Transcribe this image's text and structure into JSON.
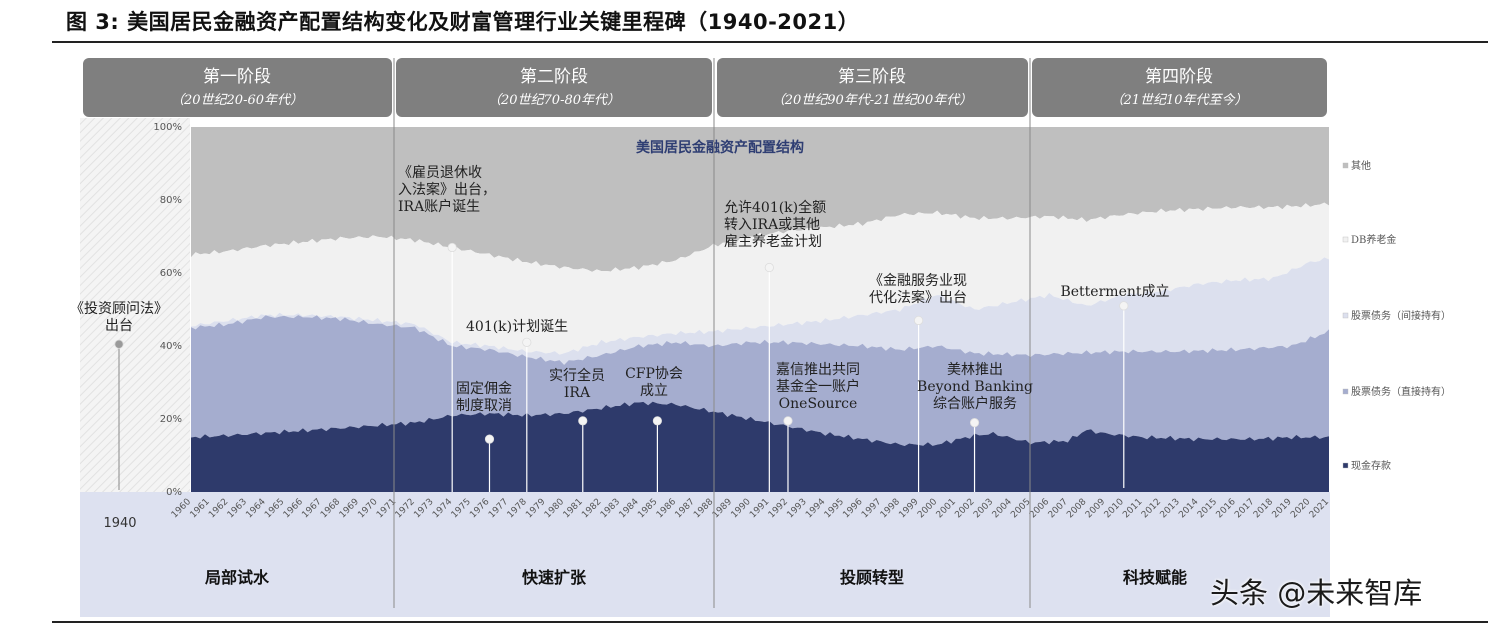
{
  "figure": {
    "title": "图 3: 美国居民金融资产配置结构变化及财富管理行业关键里程碑（1940-2021）",
    "watermark": "头条 @未来智库"
  },
  "stages": [
    {
      "title": "第一阶段",
      "subtitle": "（20世纪20-60年代）"
    },
    {
      "title": "第二阶段",
      "subtitle": "（20世纪70-80年代）"
    },
    {
      "title": "第三阶段",
      "subtitle": "（20世纪90年代-21世纪00年代）"
    },
    {
      "title": "第四阶段",
      "subtitle": "（21世纪10年代至今）"
    }
  ],
  "phases": [
    "局部试水",
    "快速扩张",
    "投顾转型",
    "科技赋能"
  ],
  "colors": {
    "stage_header": "#7f7f7f",
    "lower_band": "#dde1f0",
    "cash": "#2e3a6b",
    "direct": "#a5adcf",
    "indirect": "#dce0ee",
    "db": "#f1f1f1",
    "other": "#bfbfbf",
    "chart_title": "#2f3e73"
  },
  "chart_data": {
    "type": "area",
    "stacked": true,
    "title": "美国居民金融资产配置结构",
    "x_start": 1960,
    "x_end": 2021,
    "x_ticks": [
      1960,
      1961,
      1962,
      1963,
      1964,
      1965,
      1966,
      1967,
      1968,
      1969,
      1970,
      1971,
      1972,
      1973,
      1974,
      1975,
      1976,
      1977,
      1978,
      1979,
      1980,
      1981,
      1982,
      1983,
      1984,
      1985,
      1986,
      1987,
      1988,
      1989,
      1990,
      1991,
      1992,
      1993,
      1994,
      1995,
      1996,
      1997,
      1998,
      1999,
      2000,
      2001,
      2002,
      2003,
      2004,
      2005,
      2006,
      2007,
      2008,
      2009,
      2010,
      2011,
      2012,
      2013,
      2014,
      2015,
      2016,
      2017,
      2018,
      2019,
      2020,
      2021
    ],
    "y_ticks": [
      "0%",
      "20%",
      "40%",
      "60%",
      "80%",
      "100%"
    ],
    "ylim": [
      0,
      100
    ],
    "year_1940_label": "1940",
    "cumulative_boundaries": {
      "cash_top": [
        [
          1960,
          15
        ],
        [
          1962,
          15.5
        ],
        [
          1965,
          16.5
        ],
        [
          1968,
          17.5
        ],
        [
          1972,
          19
        ],
        [
          1974,
          21
        ],
        [
          1976,
          21.5
        ],
        [
          1978,
          21
        ],
        [
          1980,
          21.5
        ],
        [
          1982,
          23
        ],
        [
          1984,
          24.5
        ],
        [
          1986,
          24
        ],
        [
          1988,
          22
        ],
        [
          1990,
          20
        ],
        [
          1992,
          18
        ],
        [
          1994,
          16
        ],
        [
          1996,
          14.5
        ],
        [
          1998,
          13
        ],
        [
          2000,
          13
        ],
        [
          2002,
          15.5
        ],
        [
          2003,
          16
        ],
        [
          2005,
          13.5
        ],
        [
          2007,
          14
        ],
        [
          2008,
          17
        ],
        [
          2009,
          16
        ],
        [
          2011,
          15
        ],
        [
          2014,
          14.5
        ],
        [
          2017,
          14.5
        ],
        [
          2019,
          15
        ],
        [
          2021,
          15
        ]
      ],
      "direct_top": [
        [
          1960,
          45
        ],
        [
          1962,
          46
        ],
        [
          1964,
          48
        ],
        [
          1966,
          48
        ],
        [
          1968,
          47.5
        ],
        [
          1970,
          46
        ],
        [
          1972,
          45
        ],
        [
          1974,
          40
        ],
        [
          1976,
          39
        ],
        [
          1978,
          37
        ],
        [
          1980,
          35.5
        ],
        [
          1982,
          37.5
        ],
        [
          1984,
          40
        ],
        [
          1986,
          41
        ],
        [
          1988,
          40
        ],
        [
          1990,
          41
        ],
        [
          1992,
          41
        ],
        [
          1994,
          40.5
        ],
        [
          1996,
          40
        ],
        [
          1998,
          39
        ],
        [
          2000,
          40
        ],
        [
          2002,
          38
        ],
        [
          2005,
          37.5
        ],
        [
          2007,
          38
        ],
        [
          2010,
          38.5
        ],
        [
          2013,
          38.5
        ],
        [
          2016,
          39
        ],
        [
          2019,
          40
        ],
        [
          2021,
          44
        ]
      ],
      "indirect_top": [
        [
          1960,
          45.5
        ],
        [
          1962,
          47
        ],
        [
          1964,
          48.5
        ],
        [
          1966,
          48.5
        ],
        [
          1968,
          48
        ],
        [
          1970,
          47
        ],
        [
          1972,
          46
        ],
        [
          1974,
          41
        ],
        [
          1976,
          40
        ],
        [
          1978,
          38.5
        ],
        [
          1980,
          38
        ],
        [
          1982,
          41
        ],
        [
          1984,
          42.5
        ],
        [
          1986,
          43.5
        ],
        [
          1988,
          44
        ],
        [
          1990,
          45
        ],
        [
          1992,
          46
        ],
        [
          1994,
          47
        ],
        [
          1996,
          48.5
        ],
        [
          1998,
          50
        ],
        [
          2000,
          54
        ],
        [
          2002,
          50
        ],
        [
          2004,
          52
        ],
        [
          2006,
          54
        ],
        [
          2008,
          51
        ],
        [
          2010,
          54
        ],
        [
          2012,
          55
        ],
        [
          2014,
          57
        ],
        [
          2016,
          58
        ],
        [
          2018,
          58.5
        ],
        [
          2020,
          63
        ],
        [
          2021,
          64
        ]
      ],
      "db_top": [
        [
          1960,
          65
        ],
        [
          1962,
          66
        ],
        [
          1964,
          67.5
        ],
        [
          1966,
          68.5
        ],
        [
          1968,
          69.5
        ],
        [
          1970,
          70
        ],
        [
          1972,
          69
        ],
        [
          1974,
          67
        ],
        [
          1976,
          65
        ],
        [
          1978,
          63
        ],
        [
          1980,
          61.5
        ],
        [
          1982,
          60.5
        ],
        [
          1984,
          61.5
        ],
        [
          1986,
          63.5
        ],
        [
          1988,
          67.5
        ],
        [
          1990,
          70
        ],
        [
          1992,
          71.5
        ],
        [
          1994,
          72.5
        ],
        [
          1996,
          73.5
        ],
        [
          1998,
          76
        ],
        [
          2000,
          76.5
        ],
        [
          2002,
          75
        ],
        [
          2004,
          75
        ],
        [
          2006,
          75.5
        ],
        [
          2008,
          74.5
        ],
        [
          2010,
          76
        ],
        [
          2012,
          77
        ],
        [
          2014,
          77.5
        ],
        [
          2016,
          78
        ],
        [
          2018,
          78
        ],
        [
          2020,
          78.5
        ],
        [
          2021,
          79
        ]
      ]
    },
    "legend": [
      "其他",
      "DB养老金",
      "股票债务（间接持有）",
      "股票债务（直接持有）",
      "现金存款"
    ],
    "legend_placement": "right",
    "annotations": [
      {
        "year": 1974,
        "lines": [
          "《雇员退休收",
          "入法案》出台，",
          "IRA账户诞生"
        ]
      },
      {
        "year": 1976,
        "lines": [
          "固定佣金",
          "制度取消"
        ]
      },
      {
        "year": 1978,
        "lines": [
          "401(k)计划诞生"
        ]
      },
      {
        "year": 1981,
        "lines": [
          "实行全员",
          "IRA"
        ]
      },
      {
        "year": 1985,
        "lines": [
          "CFP协会",
          "成立"
        ]
      },
      {
        "year": 1991,
        "lines": [
          "允许401(k)全额",
          "转入IRA或其他",
          "雇主养老金计划"
        ]
      },
      {
        "year": 1992,
        "lines": [
          "嘉信推出共同",
          "基金全一账户",
          "OneSource"
        ]
      },
      {
        "year": 1999,
        "lines": [
          "《金融服务业现",
          "代化法案》出台"
        ]
      },
      {
        "year": 2002,
        "lines": [
          "美林推出",
          "Beyond Banking",
          "综合账户服务"
        ]
      },
      {
        "year": 2010,
        "lines": [
          "Betterment成立"
        ]
      },
      {
        "year": 1940,
        "lines": [
          "《投资顾问法》",
          "出台"
        ]
      }
    ]
  }
}
